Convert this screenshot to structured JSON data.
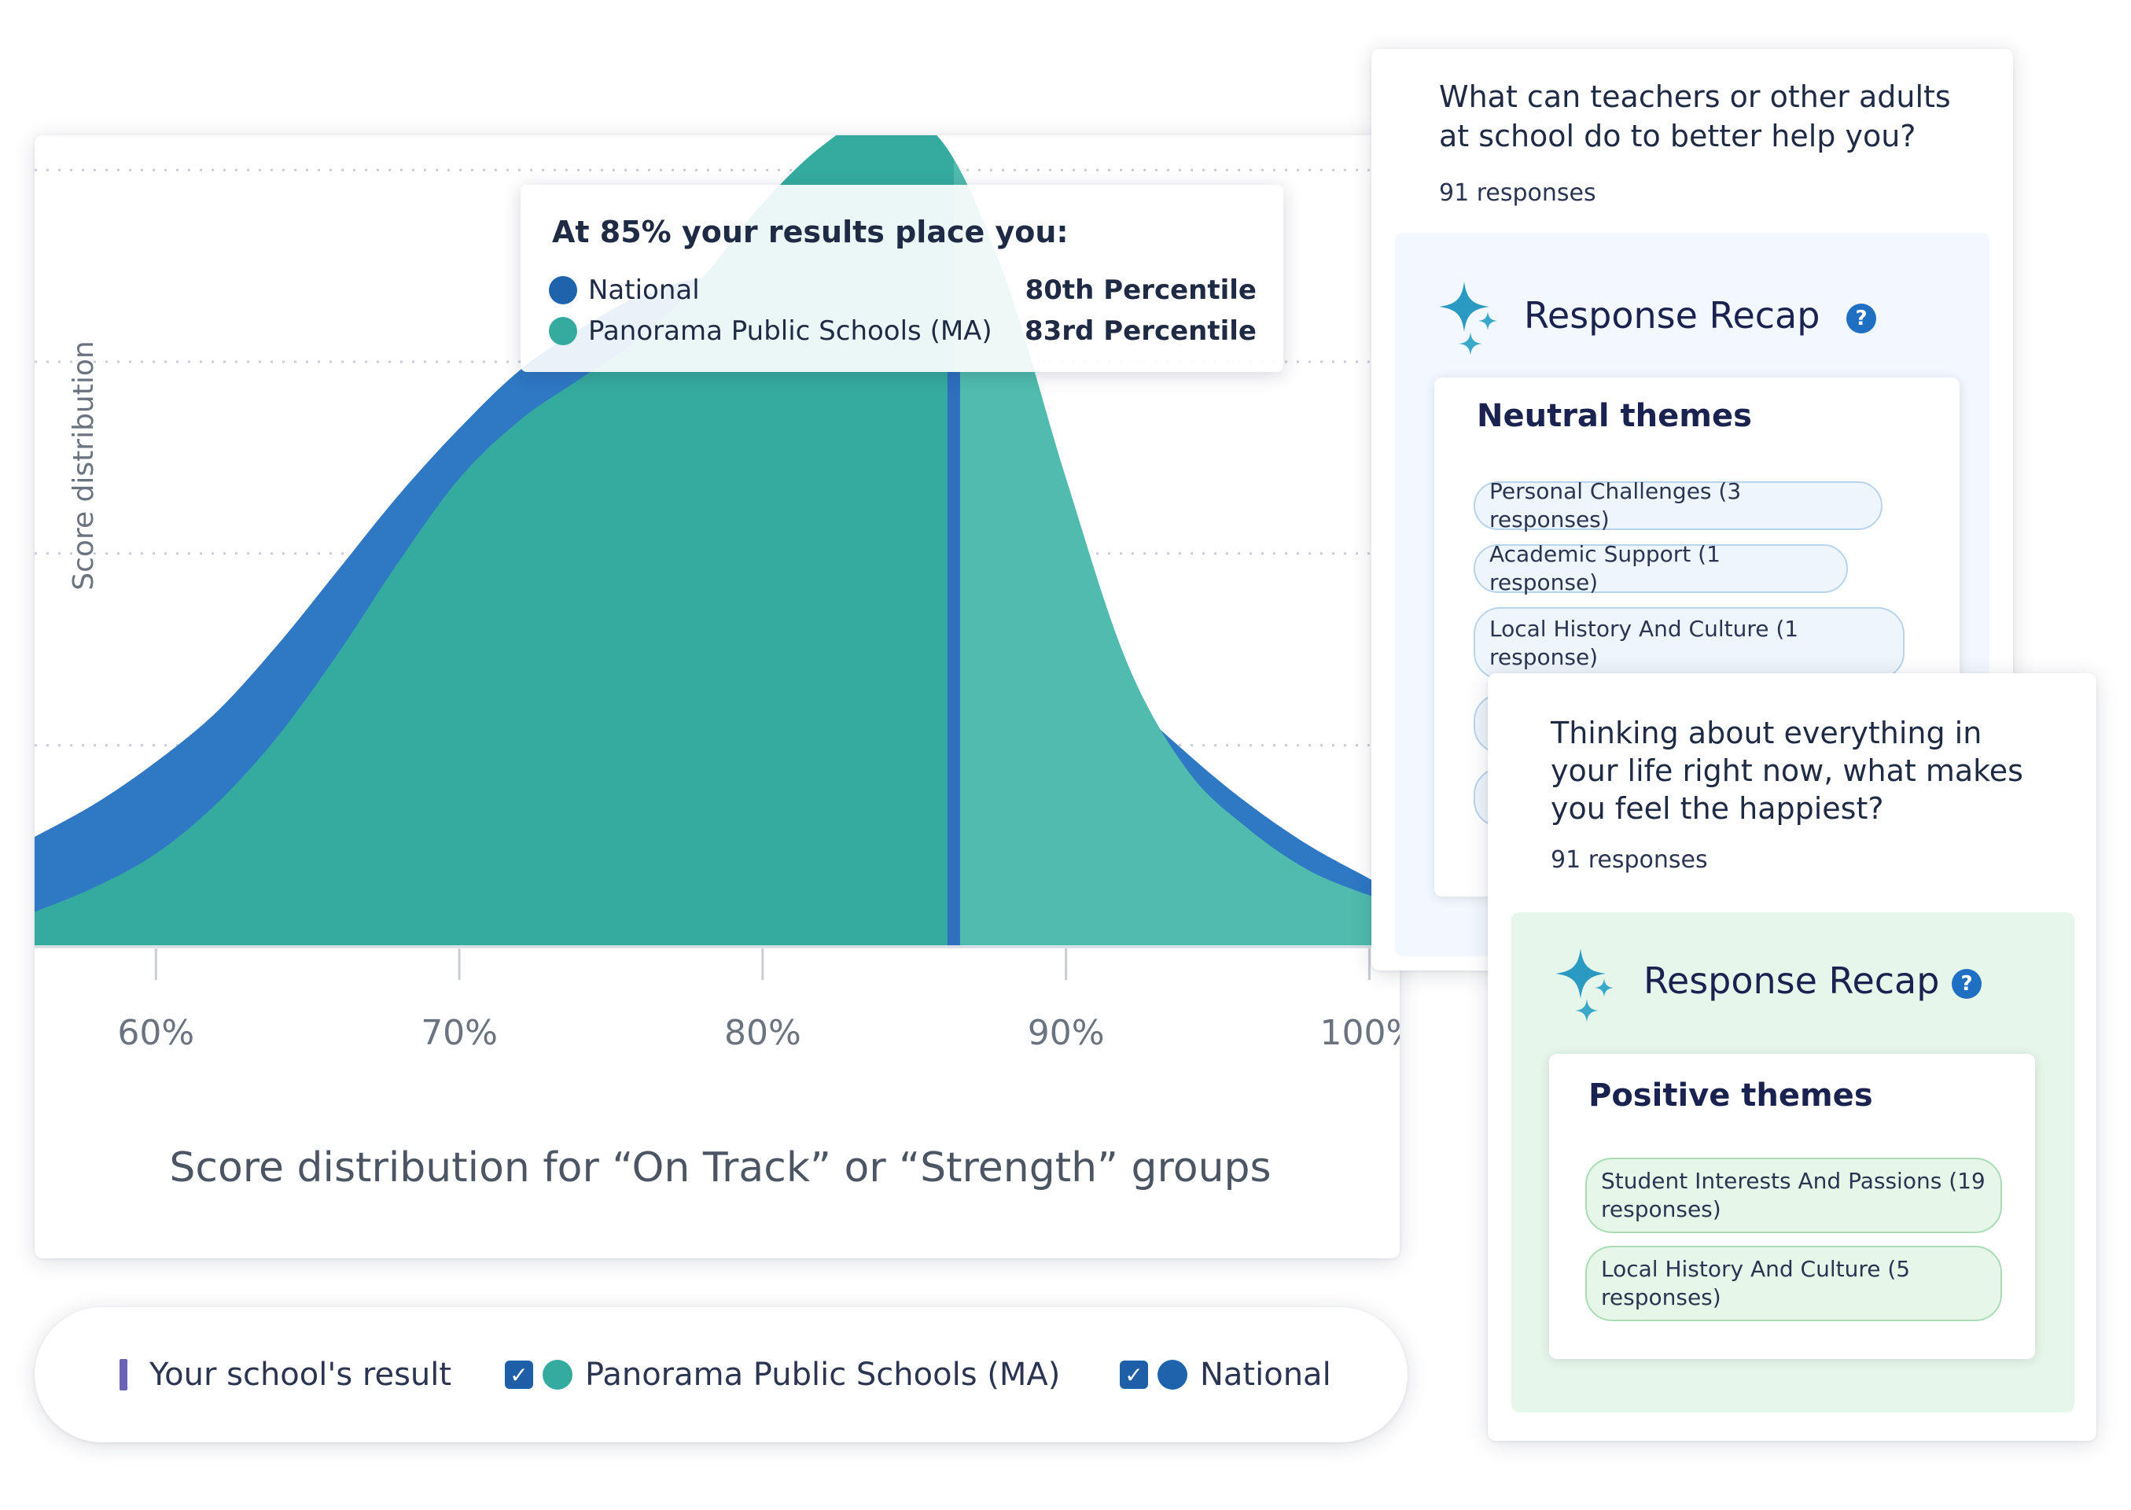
{
  "chart_data": {
    "type": "area",
    "title": "",
    "xlabel": "Score distribution for “On Track” or “Strength” groups",
    "ylabel": "Score distribution",
    "xlim": [
      56,
      101
    ],
    "ylim": [
      0,
      1.0
    ],
    "x_ticks": [
      60,
      70,
      80,
      90,
      100
    ],
    "x_tick_labels": [
      "60%",
      "70%",
      "80%",
      "90%",
      "100%"
    ],
    "grid": "horizontal dotted",
    "series": [
      {
        "name": "National",
        "color": "#2f78c4",
        "x": [
          56,
          58,
          60,
          62,
          64,
          66,
          68,
          70,
          72,
          74,
          76,
          78,
          80,
          82,
          84,
          86,
          88,
          90,
          92,
          94,
          96,
          98,
          100,
          101
        ],
        "y": [
          0.13,
          0.17,
          0.22,
          0.28,
          0.36,
          0.45,
          0.54,
          0.62,
          0.69,
          0.74,
          0.78,
          0.8,
          0.79,
          0.75,
          0.69,
          0.61,
          0.51,
          0.4,
          0.3,
          0.23,
          0.17,
          0.12,
          0.08,
          0.06
        ]
      },
      {
        "name": "Panorama Public Schools (MA)",
        "color": "#35ab9f",
        "x": [
          56,
          58,
          60,
          62,
          64,
          66,
          68,
          70,
          72,
          74,
          76,
          78,
          80,
          82,
          84,
          86,
          88,
          90,
          92,
          94,
          96,
          98,
          100,
          101
        ],
        "y": [
          0.04,
          0.07,
          0.11,
          0.17,
          0.25,
          0.35,
          0.46,
          0.56,
          0.63,
          0.68,
          0.73,
          0.8,
          0.89,
          0.96,
          1.0,
          0.96,
          0.8,
          0.56,
          0.34,
          0.21,
          0.14,
          0.09,
          0.06,
          0.05
        ]
      }
    ],
    "marker": {
      "label": "Your school's result",
      "x": 86.3,
      "color": "#2f6fbe"
    }
  },
  "tooltip": {
    "title": "At 85% your results place you:",
    "rows": [
      {
        "name": "National",
        "value": "80th Percentile",
        "color": "#1d64ad"
      },
      {
        "name": "Panorama Public Schools (MA)",
        "value": "83rd Percentile",
        "color": "#35ab9f"
      }
    ]
  },
  "legend": {
    "school_result": "Your school's result",
    "panorama": "Panorama Public Schools (MA)",
    "national": "National",
    "panorama_color": "#35ab9f",
    "national_color": "#1d64ad"
  },
  "card_a": {
    "question": "What can teachers or other adults at school do to better help you?",
    "responses": "91 responses",
    "recap_title": "Response Recap",
    "themes_title": "Neutral themes",
    "themes": [
      "Personal Challenges (3 responses)",
      "Academic Support (1 response)",
      "Local History And Culture (1 response)"
    ]
  },
  "card_b": {
    "question": "Thinking about everything in your life right now, what makes you feel the happiest?",
    "responses": "91 responses",
    "recap_title": "Response Recap",
    "themes_title": "Positive themes",
    "themes": [
      "Student Interests And Passions (19 responses)",
      "Local History And Culture (5 responses)"
    ]
  },
  "icons": {
    "help": "?",
    "check": "✓",
    "sparkle": "sparkle-icon"
  }
}
